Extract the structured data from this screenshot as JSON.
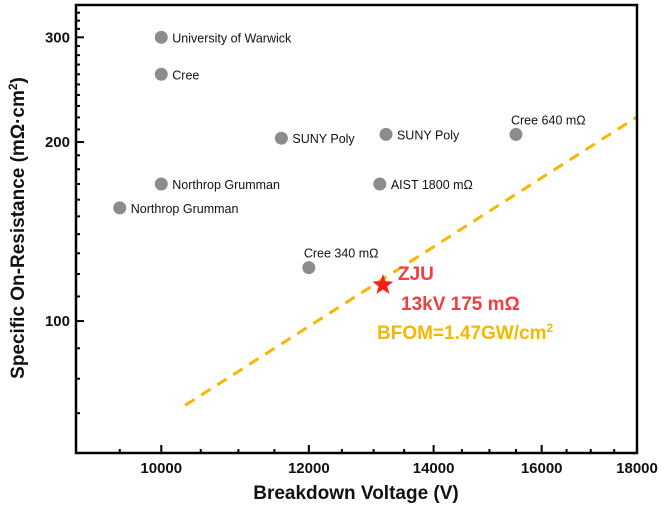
{
  "chart_data": {
    "type": "scatter",
    "title": "",
    "xlabel": "Breakdown Voltage (V)",
    "ylabel_main": "Specific On-Resistance (mΩ·cm",
    "ylabel_sup": "2",
    "ylabel_close": ")",
    "xscale": "log",
    "yscale": "log",
    "xlim": [
      9000,
      18000
    ],
    "ylim": [
      60,
      340
    ],
    "xticks": [
      10000,
      12000,
      14000,
      16000,
      18000
    ],
    "xtick_labels": [
      "10000",
      "12000",
      "14000",
      "16000",
      "18000"
    ],
    "yticks": [
      100,
      200,
      300
    ],
    "ytick_labels": [
      "100",
      "200",
      "300"
    ],
    "grid": false,
    "points": [
      {
        "label": "University of Warwick",
        "x": 10000,
        "y": 300
      },
      {
        "label": "Cree",
        "x": 10000,
        "y": 260
      },
      {
        "label": "SUNY Poly",
        "x": 11600,
        "y": 203
      },
      {
        "label": "SUNY Poly",
        "x": 13200,
        "y": 206
      },
      {
        "label": "Cree 640 mΩ",
        "x": 15500,
        "y": 206
      },
      {
        "label": "Northrop Grumman",
        "x": 10000,
        "y": 170
      },
      {
        "label": "Northrop Grumman",
        "x": 9500,
        "y": 155
      },
      {
        "label": "AIST 1800 mΩ",
        "x": 13100,
        "y": 170
      },
      {
        "label": "Cree 340 mΩ",
        "x": 12000,
        "y": 123
      }
    ],
    "highlight": {
      "label": "ZJU",
      "detail": "13kV  175 mΩ",
      "x": 13150,
      "y": 115,
      "color": "#ff1a1a",
      "text_color": "#ee4040"
    },
    "bfom_line": {
      "label_main": "BFOM=1.47GW/cm",
      "label_sup": "2",
      "bfom_gw_per_cm2": 1.47,
      "color": "#f5b800",
      "x_range": [
        10300,
        18000
      ]
    },
    "point_color": "#8c8c8c"
  }
}
